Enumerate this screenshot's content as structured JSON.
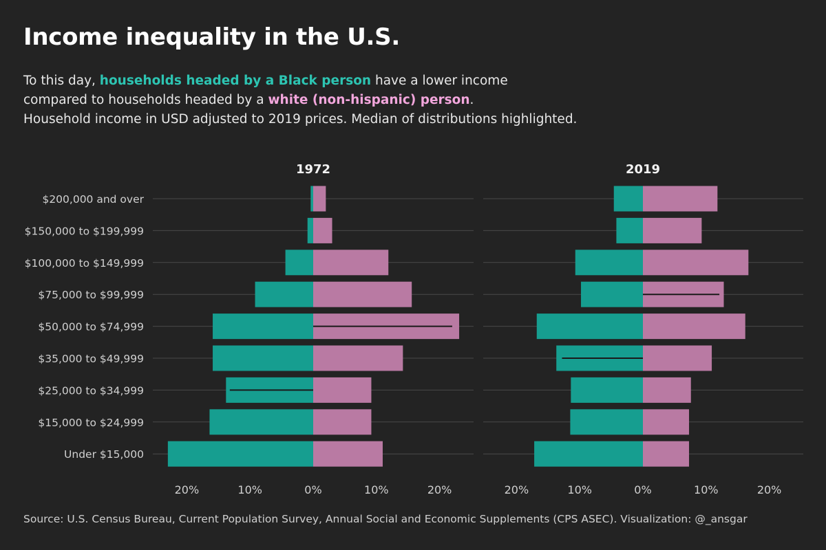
{
  "title": "Income inequality in the U.S.",
  "subtitle": {
    "line1_pre": "To this day, ",
    "line1_highlight": "households headed by a Black person",
    "line1_post": " have a lower income",
    "line2_pre": "compared to households headed by a ",
    "line2_highlight": "white (non-hispanic) person",
    "line2_post": ".",
    "line3": "Household income in USD adjusted to 2019 prices. Median of distributions highlighted."
  },
  "source": "Source: U.S. Census Bureau, Current Population Survey, Annual Social and Economic Supplements (CPS ASEC). Visualization: @_ansgar",
  "colors": {
    "black_household": "#169e90",
    "white_household": "#b97aa3",
    "median_line": "#1a1a1a"
  },
  "chart_data": {
    "type": "bar",
    "orientation": "horizontal-diverging",
    "categories": [
      "Under $15,000",
      "$15,000 to $24,999",
      "$25,000 to $34,999",
      "$35,000 to $49,999",
      "$50,000 to $74,999",
      "$75,000 to $99,999",
      "$100,000 to $149,999",
      "$150,000 to $199,999",
      "$200,000 and over"
    ],
    "xlim": [
      -25,
      25
    ],
    "ticks": [
      -20,
      -10,
      0,
      10,
      20
    ],
    "tick_labels": [
      "20%",
      "10%",
      "0%",
      "10%",
      "20%"
    ],
    "panels": [
      {
        "title": "1972",
        "series": [
          {
            "key": "black",
            "values": [
              23,
              16.4,
              13.8,
              15.9,
              15.9,
              9.2,
              4.4,
              0.9,
              0.4
            ]
          },
          {
            "key": "white",
            "values": [
              11,
              9.2,
              9.2,
              14.2,
              23.1,
              15.6,
              11.9,
              3,
              2
            ]
          }
        ],
        "median": {
          "key": "black",
          "category_index": 2,
          "value": 13.2
        },
        "median_white": {
          "key": "white",
          "category_index": 4,
          "value": 22
        }
      },
      {
        "title": "2019",
        "series": [
          {
            "key": "black",
            "values": [
              17.2,
              11.5,
              11.4,
              13.7,
              16.8,
              9.8,
              10.7,
              4.2,
              4.6
            ]
          },
          {
            "key": "white",
            "values": [
              7.3,
              7.3,
              7.6,
              10.9,
              16.2,
              12.8,
              16.7,
              9.3,
              11.8
            ]
          }
        ],
        "median": {
          "key": "black",
          "category_index": 3,
          "value": 12.8
        },
        "median_white": {
          "key": "white",
          "category_index": 5,
          "value": 12.1
        }
      }
    ]
  }
}
